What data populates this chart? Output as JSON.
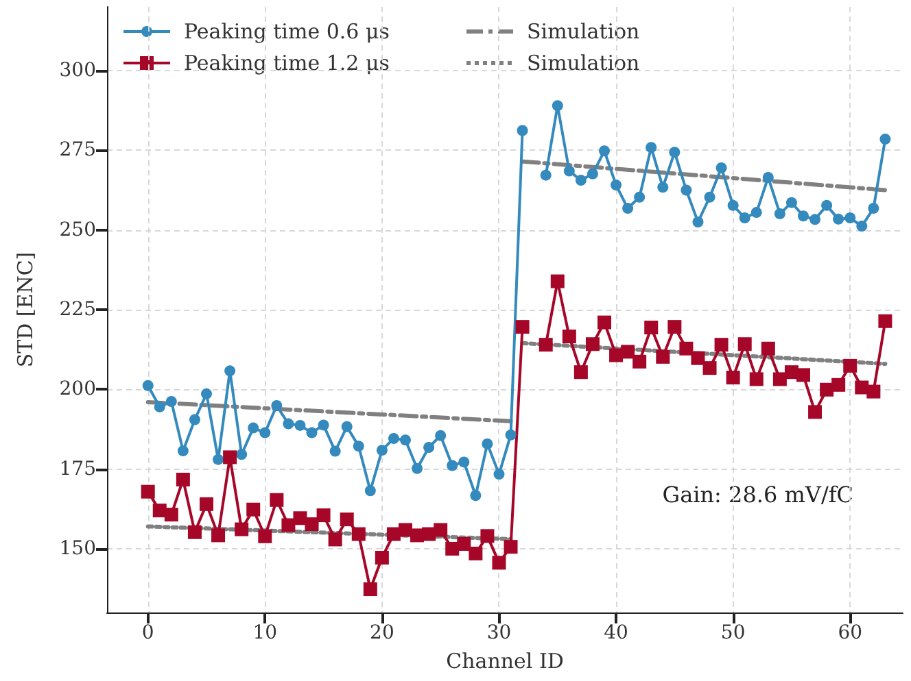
{
  "chart_data": {
    "type": "line",
    "xlabel": "Channel ID",
    "ylabel": "STD [ENC]",
    "xlim": [
      -3.5,
      64.5
    ],
    "xticks": [
      0,
      10,
      20,
      30,
      40,
      50,
      60
    ],
    "ylim": [
      130,
      320
    ],
    "yticks": [
      150,
      175,
      200,
      225,
      250,
      275,
      300
    ],
    "grid": true,
    "legend": "top left",
    "annotations": [
      "Gain: 28.6 mV/fC"
    ],
    "x": [
      0,
      1,
      2,
      3,
      4,
      5,
      6,
      7,
      8,
      9,
      10,
      11,
      12,
      13,
      14,
      15,
      16,
      17,
      18,
      19,
      20,
      21,
      22,
      23,
      24,
      25,
      26,
      27,
      28,
      29,
      30,
      31,
      32,
      33,
      34,
      35,
      36,
      37,
      38,
      39,
      40,
      41,
      42,
      43,
      44,
      45,
      46,
      47,
      48,
      49,
      50,
      51,
      52,
      53,
      54,
      55,
      56,
      57,
      58,
      59,
      60,
      61,
      62,
      63
    ],
    "series": [
      {
        "name": "Peaking time 0.6 μs",
        "color": "#348abd",
        "marker": "circle",
        "line_style": "solid",
        "values": [
          201.2,
          194.5,
          196.2,
          180.7,
          190.5,
          198.6,
          178,
          205.8,
          179.6,
          187.9,
          186.4,
          194.9,
          189.2,
          188.7,
          186.4,
          188.8,
          180.6,
          188.3,
          182.2,
          168.2,
          180.9,
          184.6,
          184.1,
          175.2,
          181.8,
          185.5,
          176.1,
          177.2,
          166.7,
          182.9,
          173.4,
          185.7,
          281.2,
          null,
          267.2,
          289,
          268.5,
          265.6,
          267.6,
          274.8,
          264.1,
          256.8,
          260.3,
          275.9,
          263.4,
          274.4,
          262.5,
          252.5,
          260.3,
          269.5,
          257.7,
          253.8,
          255.5,
          266.5,
          255.1,
          258.6,
          254.4,
          253.3,
          257.7,
          253.4,
          253.8,
          251.2,
          256.8,
          278.5
        ]
      },
      {
        "name": "Peaking time 1.2 μs",
        "color": "#a60628",
        "marker": "square",
        "line_style": "solid",
        "values": [
          167.9,
          162,
          160.7,
          171.7,
          155.2,
          164,
          154.2,
          178.7,
          156.1,
          162.3,
          153.9,
          165.3,
          157.4,
          159.6,
          157.7,
          160.5,
          152.9,
          159.2,
          154.6,
          137.3,
          147.2,
          154.6,
          155.9,
          154.2,
          154.6,
          155.9,
          150,
          151.5,
          148.5,
          154,
          145.6,
          150.6,
          219.6,
          null,
          214,
          233.9,
          216.6,
          205.4,
          214.2,
          221,
          210.7,
          211.8,
          208.7,
          219.4,
          210.2,
          219.6,
          212.8,
          209.8,
          206.7,
          214,
          203.7,
          214.2,
          203.2,
          212.8,
          203.2,
          205.4,
          204.5,
          192.9,
          199.9,
          201.4,
          207.4,
          200.6,
          199.3,
          221.4
        ]
      },
      {
        "name": "Simulation",
        "color": "#808080",
        "marker": "none",
        "line_style": "dashed",
        "x": [
          0,
          31,
          31.5,
          32,
          63
        ],
        "values": [
          196,
          190,
          null,
          271.5,
          262.5
        ]
      },
      {
        "name": "Simulation",
        "color": "#808080",
        "marker": "none",
        "line_style": "dotted",
        "x": [
          0,
          31,
          31.5,
          32,
          63
        ],
        "values": [
          157,
          153,
          null,
          214.5,
          208
        ]
      }
    ]
  }
}
